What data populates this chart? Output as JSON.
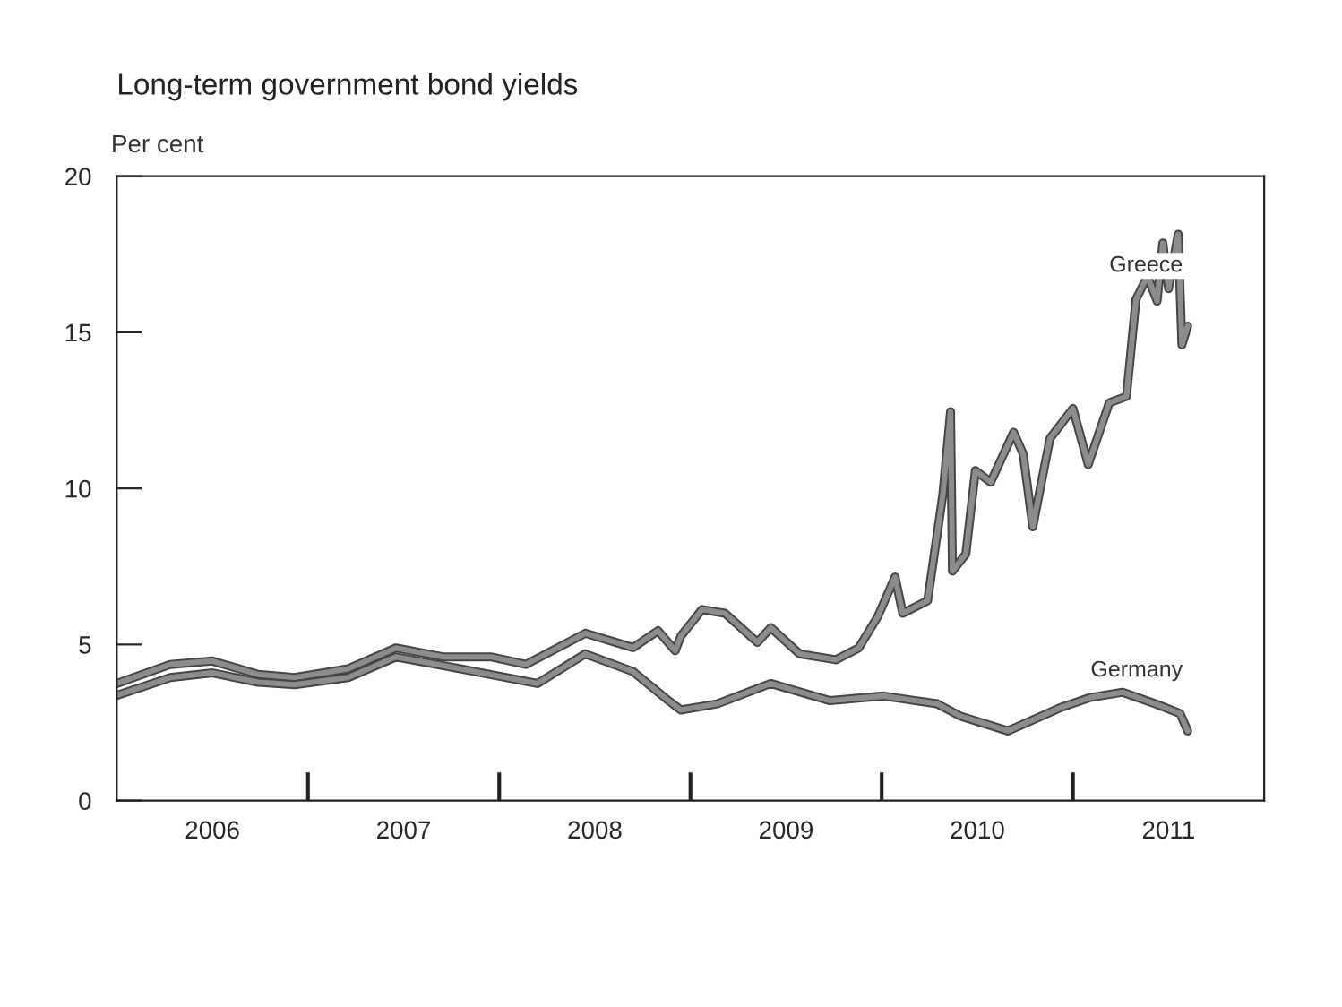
{
  "chart_data": {
    "type": "line",
    "title": "Long-term government bond yields",
    "ylabel": "Per cent",
    "xlim": [
      2006,
      2012
    ],
    "ylim": [
      0,
      20
    ],
    "yticks": [
      0,
      5,
      10,
      15,
      20
    ],
    "xticks": [
      {
        "value": 2006.5,
        "label": "2006"
      },
      {
        "value": 2007,
        "label": null
      },
      {
        "value": 2007.5,
        "label": "2007"
      },
      {
        "value": 2008,
        "label": null
      },
      {
        "value": 2008.5,
        "label": "2008"
      },
      {
        "value": 2009,
        "label": null
      },
      {
        "value": 2009.5,
        "label": "2009"
      },
      {
        "value": 2010,
        "label": null
      },
      {
        "value": 2010.5,
        "label": "2010"
      },
      {
        "value": 2011,
        "label": null
      },
      {
        "value": 2011.5,
        "label": "2011"
      }
    ],
    "grid": false,
    "legend": false,
    "marker": "none",
    "line_style": "solid",
    "series": [
      {
        "name": "Greece",
        "color": "#8c8c8c",
        "x": [
          2006.0,
          2006.28,
          2006.5,
          2006.74,
          2006.93,
          2007.21,
          2007.46,
          2007.71,
          2007.96,
          2008.14,
          2008.45,
          2008.7,
          2008.83,
          2008.92,
          2008.95,
          2009.06,
          2009.18,
          2009.35,
          2009.42,
          2009.57,
          2009.76,
          2009.88,
          2009.98,
          2010.07,
          2010.11,
          2010.24,
          2010.32,
          2010.36,
          2010.37,
          2010.44,
          2010.49,
          2010.57,
          2010.69,
          2010.74,
          2010.79,
          2010.88,
          2011.0,
          2011.08,
          2011.19,
          2011.28,
          2011.33,
          2011.39,
          2011.44,
          2011.47,
          2011.5,
          2011.55,
          2011.57,
          2011.6
        ],
        "values": [
          3.75,
          4.36,
          4.47,
          4.04,
          3.94,
          4.22,
          4.89,
          4.6,
          4.6,
          4.36,
          5.36,
          4.9,
          5.44,
          4.8,
          5.27,
          6.12,
          6.0,
          5.07,
          5.54,
          4.7,
          4.51,
          4.89,
          5.9,
          7.16,
          6.0,
          6.4,
          9.81,
          12.46,
          7.35,
          7.9,
          10.57,
          10.2,
          11.8,
          11.1,
          8.77,
          11.6,
          12.56,
          10.76,
          12.74,
          12.95,
          16.06,
          16.8,
          16.0,
          17.86,
          16.4,
          18.14,
          14.6,
          15.2
        ]
      },
      {
        "name": "Germany",
        "color": "#8c8c8c",
        "x": [
          2006.0,
          2006.28,
          2006.5,
          2006.74,
          2006.93,
          2007.21,
          2007.46,
          2007.71,
          2007.96,
          2008.2,
          2008.45,
          2008.7,
          2008.89,
          2008.95,
          2009.14,
          2009.42,
          2009.73,
          2010.01,
          2010.29,
          2010.41,
          2010.66,
          2010.94,
          2011.09,
          2011.26,
          2011.44,
          2011.56,
          2011.6
        ],
        "values": [
          3.37,
          3.94,
          4.09,
          3.79,
          3.71,
          3.94,
          4.6,
          4.32,
          4.03,
          3.75,
          4.7,
          4.13,
          3.18,
          2.9,
          3.1,
          3.75,
          3.2,
          3.35,
          3.1,
          2.71,
          2.23,
          2.99,
          3.3,
          3.47,
          3.08,
          2.79,
          2.23
        ]
      }
    ]
  }
}
